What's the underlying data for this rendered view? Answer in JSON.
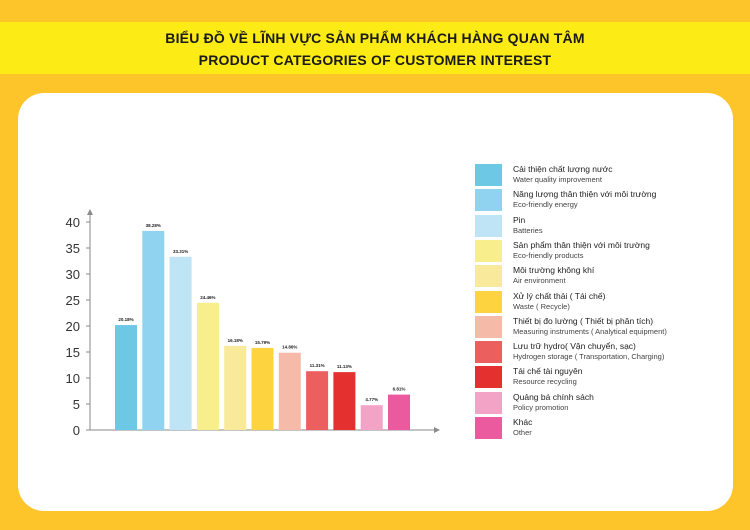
{
  "header": {
    "title_vi": "BIỂU ĐỒ VỀ LĨNH VỰC SẢN PHẨM KHÁCH HÀNG QUAN TÂM",
    "title_en": "PRODUCT CATEGORIES OF CUSTOMER INTEREST"
  },
  "colors": {
    "background": "#FDC52A",
    "title_band": "#FCEB14",
    "card": "#FFFFFF",
    "axis": "#8A8A8A"
  },
  "chart_data": {
    "type": "bar",
    "title": "",
    "xlabel": "",
    "ylabel": "",
    "ylim": [
      0,
      40
    ],
    "yticks": [
      0,
      5,
      10,
      15,
      20,
      25,
      30,
      35,
      40
    ],
    "grid": false,
    "legend_position": "right",
    "categories": [
      {
        "vi": "Cải thiện chất lượng nước",
        "en": "Water quality improvement",
        "color": "#6DC8E6"
      },
      {
        "vi": "Năng lượng thân thiện với môi trường",
        "en": "Eco-friendly energy",
        "color": "#8FD3F0"
      },
      {
        "vi": "Pin",
        "en": "Batteries",
        "color": "#BFE4F6"
      },
      {
        "vi": "Sản phẩm thân thiện với môi trường",
        "en": "Eco-friendly products",
        "color": "#F8EF8C"
      },
      {
        "vi": "Môi trường không khí",
        "en": "Air environment",
        "color": "#F9E99A"
      },
      {
        "vi": "Xử lý chất thải ( Tái chế)",
        "en": "Waste ( Recycle)",
        "color": "#FDD33F"
      },
      {
        "vi": "Thiết bị đo lường ( Thiết bị phân tích)",
        "en": "Measuring instruments ( Analytical equipment)",
        "color": "#F6BBA8"
      },
      {
        "vi": "Lưu trữ hydro( Vận chuyển, sạc)",
        "en": "Hydrogen storage ( Transportation, Charging)",
        "color": "#EC5F5F"
      },
      {
        "vi": "Tái chế tài nguyên",
        "en": "Resource recycling",
        "color": "#E4312F"
      },
      {
        "vi": "Quảng bá chính sách",
        "en": "Policy promotion",
        "color": "#F3A3C5"
      },
      {
        "vi": "Khác",
        "en": "Other",
        "color": "#EB5A9E"
      }
    ],
    "values": [
      20.18,
      38.28,
      33.31,
      24.46,
      16.18,
      15.79,
      14.86,
      11.31,
      11.13,
      4.77,
      6.81
    ],
    "data_labels": [
      "20.18%",
      "38.28%",
      "33.31%",
      "24.46%",
      "16.18%",
      "15.79%",
      "14.86%",
      "11.31%",
      "11.13%",
      "4.77%",
      "6.81%"
    ]
  }
}
